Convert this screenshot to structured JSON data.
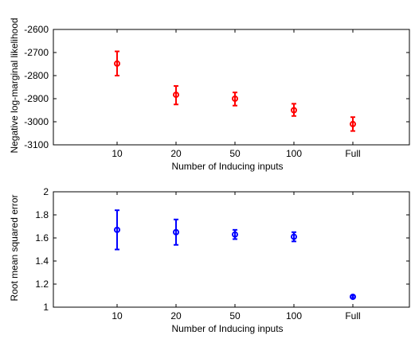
{
  "chart_data": [
    {
      "type": "scatter",
      "error_bars": true,
      "xlabel": "Number of Inducing inputs",
      "ylabel": "Negative log-marginal likelihood",
      "categories": [
        "10",
        "20",
        "50",
        "100",
        "Full"
      ],
      "ylim": [
        -3100,
        -2600
      ],
      "yticks": [
        -3100,
        -3000,
        -2900,
        -2800,
        -2700,
        -2600
      ],
      "color": "#ff0000",
      "marker": "circle",
      "grid": false,
      "values": [
        -2748,
        -2883,
        -2900,
        -2950,
        -3010
      ],
      "lower": [
        -2800,
        -2925,
        -2930,
        -2975,
        -3040
      ],
      "upper": [
        -2695,
        -2845,
        -2873,
        -2922,
        -2980
      ]
    },
    {
      "type": "scatter",
      "error_bars": true,
      "xlabel": "Number of Inducing inputs",
      "ylabel": "Root mean squared error",
      "categories": [
        "10",
        "20",
        "50",
        "100",
        "Full"
      ],
      "ylim": [
        1,
        2
      ],
      "yticks": [
        1,
        1.2,
        1.4,
        1.6,
        1.8,
        2
      ],
      "color": "#0000ff",
      "marker": "circle",
      "grid": false,
      "values": [
        1.67,
        1.65,
        1.63,
        1.61,
        1.09
      ],
      "lower": [
        1.5,
        1.54,
        1.59,
        1.57,
        1.08
      ],
      "upper": [
        1.84,
        1.76,
        1.67,
        1.65,
        1.1
      ]
    }
  ]
}
